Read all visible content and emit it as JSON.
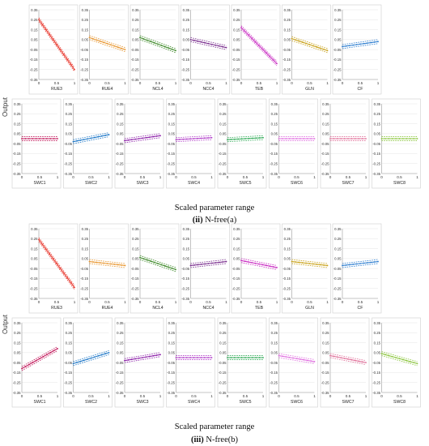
{
  "figure": {
    "ylabel": "Output",
    "xlabel": "Scaled parameter range",
    "panels": [
      {
        "label_bold": "(ii)",
        "label_text": " N-free(a)"
      },
      {
        "label_bold": "(iii)",
        "label_text": " N-free(b)"
      }
    ]
  },
  "chart_data": [
    {
      "type": "line",
      "title": "N-free(a)",
      "xlabel": "Scaled parameter range",
      "ylabel": "Output",
      "xlim": [
        0,
        1
      ],
      "ylim": [
        -0.35,
        0.35
      ],
      "x_ticks": [
        "0",
        "0.5",
        "1"
      ],
      "y_ticks": [
        "0.35",
        "0.25",
        "0.15",
        "0.05",
        "-0.05",
        "-0.15",
        "-0.25",
        "-0.35"
      ],
      "series": [
        {
          "name": "RUE3",
          "color": "#e8392f",
          "y_start": 0.25,
          "y_end": -0.25,
          "band": 0.02
        },
        {
          "name": "RUE4",
          "color": "#e8962f",
          "y_start": 0.07,
          "y_end": -0.05,
          "band": 0.02
        },
        {
          "name": "NCL4",
          "color": "#3f8a2a",
          "y_start": 0.07,
          "y_end": -0.06,
          "band": 0.02
        },
        {
          "name": "NCC4",
          "color": "#7a2e8e",
          "y_start": 0.05,
          "y_end": -0.03,
          "band": 0.02
        },
        {
          "name": "TEB",
          "color": "#c92cc2",
          "y_start": 0.17,
          "y_end": -0.19,
          "band": 0.02
        },
        {
          "name": "GLN",
          "color": "#c9a21a",
          "y_start": 0.06,
          "y_end": -0.06,
          "band": 0.02
        },
        {
          "name": "CF",
          "color": "#2f7fd0",
          "y_start": -0.02,
          "y_end": 0.03,
          "band": 0.02
        },
        {
          "name": "SWC1",
          "color": "#c2185b",
          "y_start": 0.0,
          "y_end": 0.0,
          "band": 0.02
        },
        {
          "name": "SWC2",
          "color": "#1f78c8",
          "y_start": -0.03,
          "y_end": 0.04,
          "band": 0.02
        },
        {
          "name": "SWC3",
          "color": "#8e24aa",
          "y_start": -0.02,
          "y_end": 0.03,
          "band": 0.02
        },
        {
          "name": "SWC4",
          "color": "#b03cc8",
          "y_start": -0.01,
          "y_end": 0.01,
          "band": 0.02
        },
        {
          "name": "SWC5",
          "color": "#2eaa55",
          "y_start": -0.01,
          "y_end": 0.01,
          "band": 0.02
        },
        {
          "name": "SWC6",
          "color": "#e070e0",
          "y_start": 0.0,
          "y_end": 0.0,
          "band": 0.02
        },
        {
          "name": "SWC7",
          "color": "#e0709a",
          "y_start": 0.0,
          "y_end": 0.0,
          "band": 0.02
        },
        {
          "name": "SWC8",
          "color": "#8cc63f",
          "y_start": 0.0,
          "y_end": 0.0,
          "band": 0.02
        }
      ]
    },
    {
      "type": "line",
      "title": "N-free(b)",
      "xlabel": "Scaled parameter range",
      "ylabel": "Output",
      "xlim": [
        0,
        1
      ],
      "ylim": [
        -0.35,
        0.35
      ],
      "x_ticks": [
        "0",
        "0.5",
        "1"
      ],
      "y_ticks": [
        "0.35",
        "0.25",
        "0.15",
        "0.05",
        "-0.05",
        "-0.15",
        "-0.25",
        "-0.35"
      ],
      "series": [
        {
          "name": "RUE3",
          "color": "#e8392f",
          "y_start": 0.24,
          "y_end": -0.24,
          "band": 0.02
        },
        {
          "name": "RUE4",
          "color": "#e8962f",
          "y_start": 0.02,
          "y_end": -0.02,
          "band": 0.02
        },
        {
          "name": "NCL4",
          "color": "#3f8a2a",
          "y_start": 0.06,
          "y_end": -0.06,
          "band": 0.02
        },
        {
          "name": "NCC4",
          "color": "#7a2e8e",
          "y_start": -0.02,
          "y_end": 0.02,
          "band": 0.02
        },
        {
          "name": "TEB",
          "color": "#c92cc2",
          "y_start": 0.03,
          "y_end": -0.04,
          "band": 0.02
        },
        {
          "name": "GLN",
          "color": "#c9a21a",
          "y_start": 0.02,
          "y_end": -0.02,
          "band": 0.02
        },
        {
          "name": "CF",
          "color": "#2f7fd0",
          "y_start": -0.02,
          "y_end": 0.02,
          "band": 0.02
        },
        {
          "name": "SWC1",
          "color": "#c2185b",
          "y_start": -0.11,
          "y_end": 0.09,
          "band": 0.02
        },
        {
          "name": "SWC2",
          "color": "#1f78c8",
          "y_start": -0.06,
          "y_end": 0.05,
          "band": 0.02
        },
        {
          "name": "SWC3",
          "color": "#8e24aa",
          "y_start": -0.03,
          "y_end": 0.03,
          "band": 0.02
        },
        {
          "name": "SWC4",
          "color": "#b03cc8",
          "y_start": 0.0,
          "y_end": 0.0,
          "band": 0.02
        },
        {
          "name": "SWC5",
          "color": "#2eaa55",
          "y_start": 0.0,
          "y_end": 0.0,
          "band": 0.02
        },
        {
          "name": "SWC6",
          "color": "#e070e0",
          "y_start": 0.02,
          "y_end": -0.04,
          "band": 0.02
        },
        {
          "name": "SWC7",
          "color": "#e0709a",
          "y_start": 0.02,
          "y_end": -0.05,
          "band": 0.02
        },
        {
          "name": "SWC8",
          "color": "#8cc63f",
          "y_start": 0.04,
          "y_end": -0.06,
          "band": 0.02
        }
      ]
    }
  ]
}
